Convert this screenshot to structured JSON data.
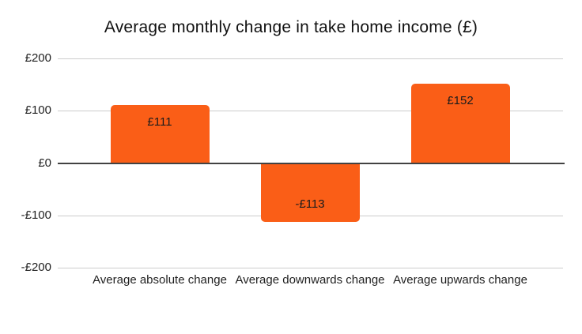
{
  "chart_data": {
    "type": "bar",
    "title": "Average monthly change in take home income (£)",
    "categories": [
      "Average absolute change",
      "Average downwards change",
      "Average upwards change"
    ],
    "values": [
      111,
      -113,
      152
    ],
    "value_labels": [
      "£111",
      "-£113",
      "£152"
    ],
    "xlabel": "",
    "ylabel": "",
    "ylim": [
      -200,
      200
    ],
    "y_ticks": [
      {
        "value": 200,
        "label": "£200"
      },
      {
        "value": 100,
        "label": "£100"
      },
      {
        "value": 0,
        "label": "£0"
      },
      {
        "value": -100,
        "label": "-£100"
      },
      {
        "value": -200,
        "label": "-£200"
      }
    ],
    "grid": true,
    "legend_position": "none",
    "colors": {
      "bar": "#fa5e17",
      "grid_line": "#cccccc",
      "zero_line": "#424242",
      "title_text": "#111111",
      "label_text": "#1f1f1f",
      "background": "#ffffff"
    }
  }
}
